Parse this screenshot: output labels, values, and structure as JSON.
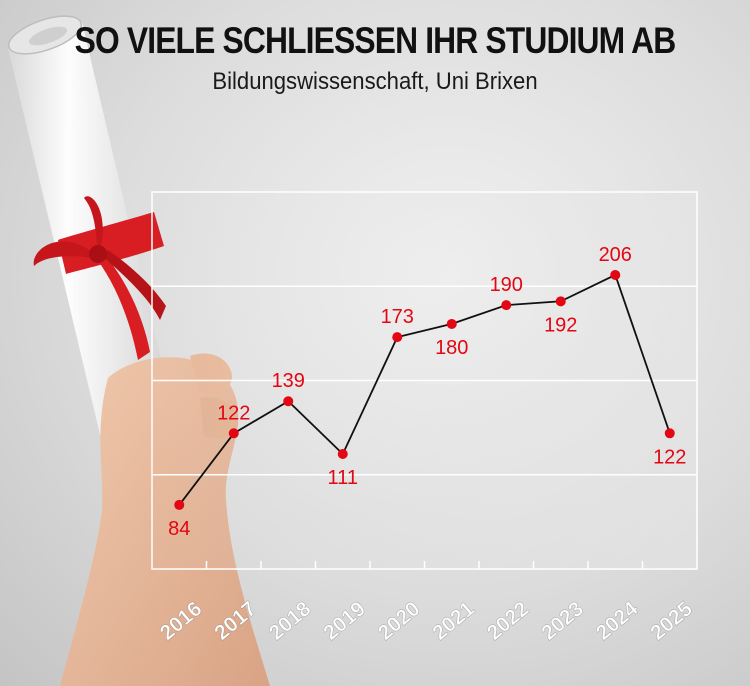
{
  "header": {
    "title": "SO VIELE SCHLIESSEN IHR STUDIUM AB",
    "subtitle": "Bildungswissenschaft, Uni Brixen"
  },
  "colors": {
    "accent": "#e30613",
    "line": "#111111",
    "grid": "#ffffff"
  },
  "chart_data": {
    "type": "line",
    "title": "SO VIELE SCHLIESSEN IHR STUDIUM AB",
    "subtitle": "Bildungswissenschaft, Uni Brixen",
    "xlabel": "",
    "ylabel": "",
    "categories": [
      "2016",
      "2017",
      "2018",
      "2019",
      "2020",
      "2021",
      "2022",
      "2023",
      "2024",
      "2025"
    ],
    "series": [
      {
        "values": [
          84,
          122,
          139,
          111,
          173,
          180,
          190,
          192,
          206,
          122
        ]
      }
    ],
    "ylim": [
      50,
      250
    ],
    "grid": true,
    "legend": "none",
    "label_positions": [
      "below",
      "above",
      "above",
      "below",
      "above",
      "below",
      "above",
      "below",
      "above",
      "below"
    ]
  }
}
